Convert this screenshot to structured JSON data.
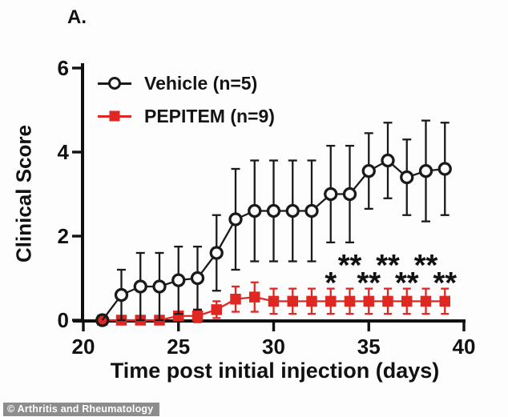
{
  "panel_label": "A.",
  "watermark": "© Arthritis and Rheumatology",
  "colors": {
    "vehicle": "#1a1a1a",
    "pepitem": "#e02823",
    "axis": "#111111",
    "watermark_bg": "#8d8d8d",
    "watermark_text": "#ffffff"
  },
  "chart_data": {
    "type": "line",
    "title": "",
    "xlabel": "Time post initial injection (days)",
    "ylabel": "Clinical Score",
    "xlim": [
      20,
      40
    ],
    "ylim": [
      0,
      6
    ],
    "xticks": [
      "20",
      "25",
      "30",
      "35",
      "40"
    ],
    "xtick_values": [
      20,
      25,
      30,
      35,
      40
    ],
    "yticks": [
      "0",
      "2",
      "4",
      "6"
    ],
    "ytick_values": [
      0,
      2,
      4,
      6
    ],
    "grid": false,
    "legend_position": "top-left-inside",
    "x": [
      21,
      22,
      23,
      24,
      25,
      26,
      27,
      28,
      29,
      30,
      31,
      32,
      33,
      34,
      35,
      36,
      37,
      38,
      39
    ],
    "series": [
      {
        "name": "Vehicle (n=5)",
        "marker": "circle",
        "color": "#1a1a1a",
        "values": [
          0,
          0.6,
          0.8,
          0.8,
          0.95,
          1.0,
          1.6,
          2.4,
          2.6,
          2.6,
          2.6,
          2.6,
          3.0,
          3.0,
          3.55,
          3.8,
          3.4,
          3.55,
          3.6
        ],
        "errors": [
          0,
          0.6,
          0.8,
          0.8,
          0.8,
          0.75,
          0.9,
          1.2,
          1.2,
          1.2,
          1.2,
          1.2,
          1.15,
          1.15,
          0.9,
          0.9,
          0.9,
          1.2,
          1.1
        ]
      },
      {
        "name": "PEPITEM (n=9)",
        "marker": "square",
        "color": "#e02823",
        "values": [
          0,
          0,
          0,
          0,
          0.1,
          0.1,
          0.25,
          0.5,
          0.55,
          0.45,
          0.45,
          0.45,
          0.45,
          0.45,
          0.45,
          0.45,
          0.45,
          0.45,
          0.45
        ],
        "errors": [
          0,
          0,
          0,
          0,
          0.1,
          0.15,
          0.2,
          0.3,
          0.35,
          0.3,
          0.3,
          0.3,
          0.3,
          0.3,
          0.3,
          0.3,
          0.3,
          0.3,
          0.3
        ]
      }
    ],
    "annotations": [
      {
        "x": 33,
        "label": "*",
        "row": "low"
      },
      {
        "x": 34,
        "label": "**",
        "row": "high"
      },
      {
        "x": 35,
        "label": "**",
        "row": "low"
      },
      {
        "x": 36,
        "label": "**",
        "row": "high"
      },
      {
        "x": 37,
        "label": "**",
        "row": "low"
      },
      {
        "x": 38,
        "label": "**",
        "row": "high"
      },
      {
        "x": 39,
        "label": "**",
        "row": "low"
      }
    ]
  }
}
